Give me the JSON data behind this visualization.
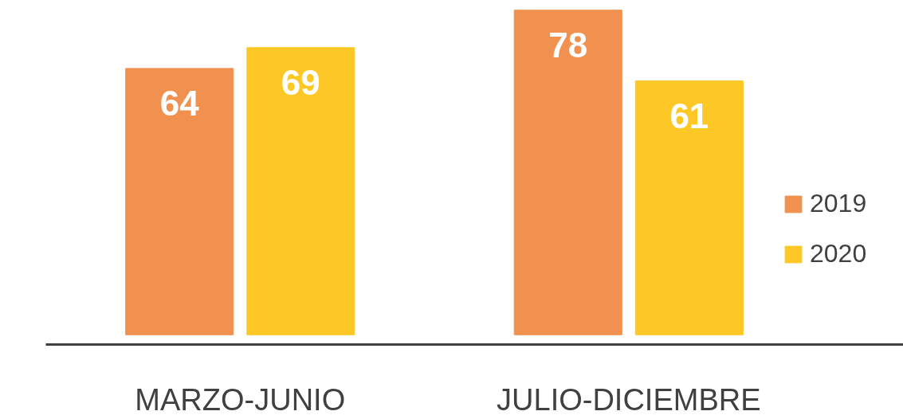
{
  "chart_data": {
    "type": "bar",
    "categories": [
      "MARZO-JUNIO",
      "JULIO-DICIEMBRE"
    ],
    "series": [
      {
        "name": "2019",
        "color": "#f0914f",
        "values": [
          64,
          78
        ]
      },
      {
        "name": "2020",
        "color": "#fdc825",
        "values": [
          69,
          61
        ]
      }
    ],
    "data_labels": true,
    "legend": "right",
    "grid": false,
    "tick_labels": "x"
  }
}
